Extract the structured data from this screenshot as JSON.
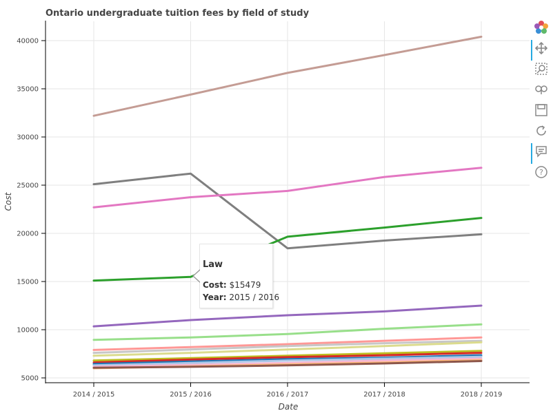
{
  "chart_data": {
    "type": "line",
    "title": "Ontario undergraduate tuition fees by field of study",
    "xlabel": "Date",
    "ylabel": "Cost",
    "categories": [
      "2014 / 2015",
      "2015 / 2016",
      "2016 / 2017",
      "2017 / 2018",
      "2018 / 2019"
    ],
    "ylim": [
      4500,
      42000
    ],
    "yticks": [
      5000,
      10000,
      15000,
      20000,
      25000,
      30000,
      35000,
      40000
    ],
    "grid": true,
    "legend": "none",
    "series": [
      {
        "name": "",
        "color": "#c49c94",
        "values": [
          32200,
          34400,
          36650,
          38500,
          40400
        ]
      },
      {
        "name": "",
        "color": "#7f7f7f",
        "values": [
          25100,
          26200,
          18450,
          19250,
          19900
        ]
      },
      {
        "name": "",
        "color": "#e377c2",
        "values": [
          22700,
          23750,
          24400,
          25850,
          26800
        ]
      },
      {
        "name": "Law",
        "color": "#2ca02c",
        "values": [
          15100,
          15479,
          19650,
          20600,
          21600
        ]
      },
      {
        "name": "",
        "color": "#9467bd",
        "values": [
          10350,
          11000,
          11500,
          11900,
          12500
        ]
      },
      {
        "name": "",
        "color": "#98df8a",
        "values": [
          8950,
          9200,
          9550,
          10100,
          10550
        ]
      },
      {
        "name": "",
        "color": "#ff9896",
        "values": [
          7900,
          8200,
          8500,
          8850,
          9200
        ]
      },
      {
        "name": "",
        "color": "#c7c7c7",
        "values": [
          7600,
          7950,
          8300,
          8600,
          8850
        ]
      },
      {
        "name": "",
        "color": "#dbdb8d",
        "values": [
          7300,
          7600,
          7950,
          8300,
          8700
        ]
      },
      {
        "name": "",
        "color": "#bcbd22",
        "values": [
          6800,
          7050,
          7300,
          7550,
          7800
        ]
      },
      {
        "name": "",
        "color": "#d62728",
        "values": [
          6600,
          6900,
          7150,
          7350,
          7600
        ]
      },
      {
        "name": "",
        "color": "#1f77b4",
        "values": [
          6450,
          6700,
          6950,
          7100,
          7350
        ]
      },
      {
        "name": "",
        "color": "#aec7e8",
        "values": [
          6300,
          6550,
          6800,
          7000,
          7200
        ]
      },
      {
        "name": "",
        "color": "#f7b6d2",
        "values": [
          6150,
          6350,
          6550,
          6800,
          7000
        ]
      },
      {
        "name": "",
        "color": "#ffbb78",
        "values": [
          6000,
          6200,
          6400,
          6600,
          6850
        ]
      },
      {
        "name": "",
        "color": "#8c564b",
        "values": [
          6050,
          6150,
          6300,
          6500,
          6750
        ]
      }
    ]
  },
  "tooltip": {
    "title": "Law",
    "cost_label": "Cost:",
    "cost_value": "$15479",
    "year_label": "Year:",
    "year_value": "2015 / 2016"
  },
  "toolbar": {
    "tools": [
      {
        "icon": "bokeh-logo-icon",
        "active": false
      },
      {
        "icon": "pan-icon",
        "active": true
      },
      {
        "icon": "box-zoom-icon",
        "active": false
      },
      {
        "icon": "wheel-zoom-icon",
        "active": false
      },
      {
        "icon": "save-icon",
        "active": false
      },
      {
        "icon": "reset-icon",
        "active": false
      },
      {
        "icon": "hover-icon",
        "active": true
      },
      {
        "icon": "help-icon",
        "active": false
      }
    ]
  }
}
